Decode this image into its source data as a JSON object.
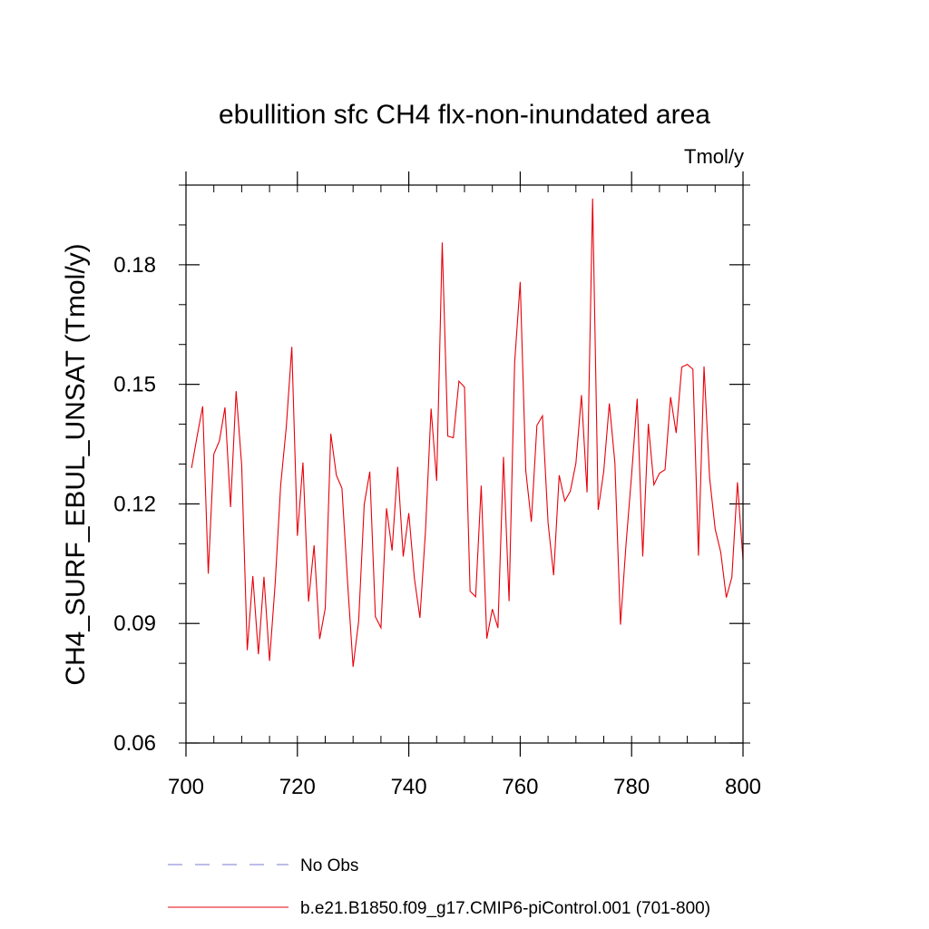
{
  "chart_data": {
    "type": "line",
    "title": "ebullition sfc CH4 flx-non-inundated area",
    "units_label": "Tmol/y",
    "xlabel": "",
    "ylabel": "CH4_SURF_EBUL_UNSAT  (Tmol/y)",
    "xlim": [
      700,
      800
    ],
    "ylim": [
      0.06,
      0.2
    ],
    "x_ticks": [
      700,
      720,
      740,
      760,
      780,
      800
    ],
    "x_tick_labels": [
      "700",
      "720",
      "740",
      "760",
      "780",
      "800"
    ],
    "x_minor_step": 5,
    "y_ticks": [
      0.06,
      0.09,
      0.12,
      0.15,
      0.18
    ],
    "y_tick_labels": [
      "0.06",
      "0.09",
      "0.12",
      "0.15",
      "0.18"
    ],
    "y_minor_step": 0.01,
    "grid": false,
    "legend_position": "bottom",
    "legend": [
      {
        "label": "No Obs",
        "color": "#7b7bd1",
        "style": "dashed"
      },
      {
        "label": "b.e21.B1850.f09_g17.CMIP6-piControl.001 (701-800)",
        "color": "#e8000b",
        "style": "solid"
      }
    ],
    "series": [
      {
        "name": "b.e21.B1850.f09_g17.CMIP6-piControl.001 (701-800)",
        "color": "#e8000b",
        "x_start": 701,
        "x_step": 1,
        "values": [
          0.129,
          0.137,
          0.1445,
          0.1025,
          0.1325,
          0.1358,
          0.1442,
          0.1192,
          0.1483,
          0.1297,
          0.0833,
          0.1019,
          0.0823,
          0.1017,
          0.0806,
          0.0998,
          0.1247,
          0.1392,
          0.1594,
          0.112,
          0.1304,
          0.0955,
          0.1096,
          0.0861,
          0.0938,
          0.1376,
          0.1272,
          0.1239,
          0.1006,
          0.0791,
          0.0906,
          0.1199,
          0.1281,
          0.0917,
          0.0889,
          0.1189,
          0.1083,
          0.1293,
          0.1068,
          0.1177,
          0.1014,
          0.0914,
          0.1133,
          0.1439,
          0.1258,
          0.1856,
          0.137,
          0.1366,
          0.1508,
          0.1493,
          0.0981,
          0.0967,
          0.1246,
          0.0862,
          0.0936,
          0.0889,
          0.1318,
          0.0956,
          0.1554,
          0.1757,
          0.1283,
          0.1155,
          0.1397,
          0.1421,
          0.1153,
          0.1021,
          0.1272,
          0.1207,
          0.1232,
          0.1302,
          0.1473,
          0.1229,
          0.1966,
          0.1185,
          0.1282,
          0.1452,
          0.1303,
          0.0897,
          0.1099,
          0.1273,
          0.1464,
          0.1068,
          0.1401,
          0.1248,
          0.1277,
          0.1286,
          0.1468,
          0.1378,
          0.1543,
          0.155,
          0.1538,
          0.107,
          0.1545,
          0.1266,
          0.1137,
          0.1079,
          0.0965,
          0.1016,
          0.1254,
          0.1059
        ]
      }
    ]
  }
}
